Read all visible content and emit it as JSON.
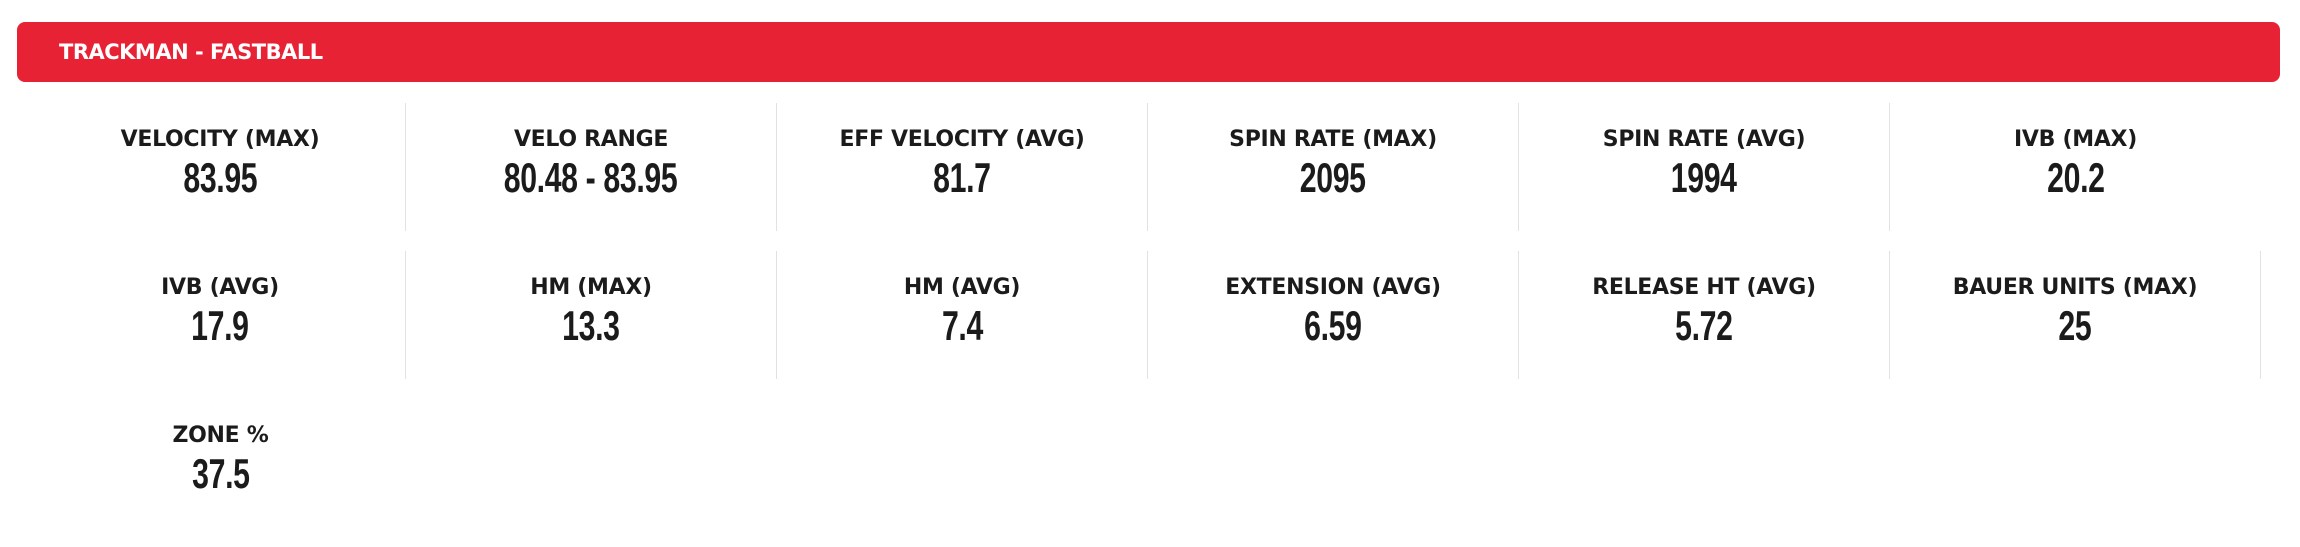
{
  "header": {
    "title": "TRACKMAN - FASTBALL",
    "color": "#e82235"
  },
  "stats": [
    {
      "label": "VELOCITY (MAX)",
      "value": "83.95"
    },
    {
      "label": "VELO RANGE",
      "value": "80.48 - 83.95"
    },
    {
      "label": "EFF VELOCITY (AVG)",
      "value": "81.7"
    },
    {
      "label": "SPIN RATE (MAX)",
      "value": "2095"
    },
    {
      "label": "SPIN RATE (AVG)",
      "value": "1994"
    },
    {
      "label": "IVB (MAX)",
      "value": "20.2"
    },
    {
      "label": "IVB (AVG)",
      "value": "17.9"
    },
    {
      "label": "HM (MAX)",
      "value": "13.3"
    },
    {
      "label": "HM (AVG)",
      "value": "7.4"
    },
    {
      "label": "EXTENSION (AVG)",
      "value": "6.59"
    },
    {
      "label": "RELEASE HT (AVG)",
      "value": "5.72"
    },
    {
      "label": "BAUER UNITS (MAX)",
      "value": "25"
    },
    {
      "label": "ZONE %",
      "value": "37.5"
    }
  ]
}
